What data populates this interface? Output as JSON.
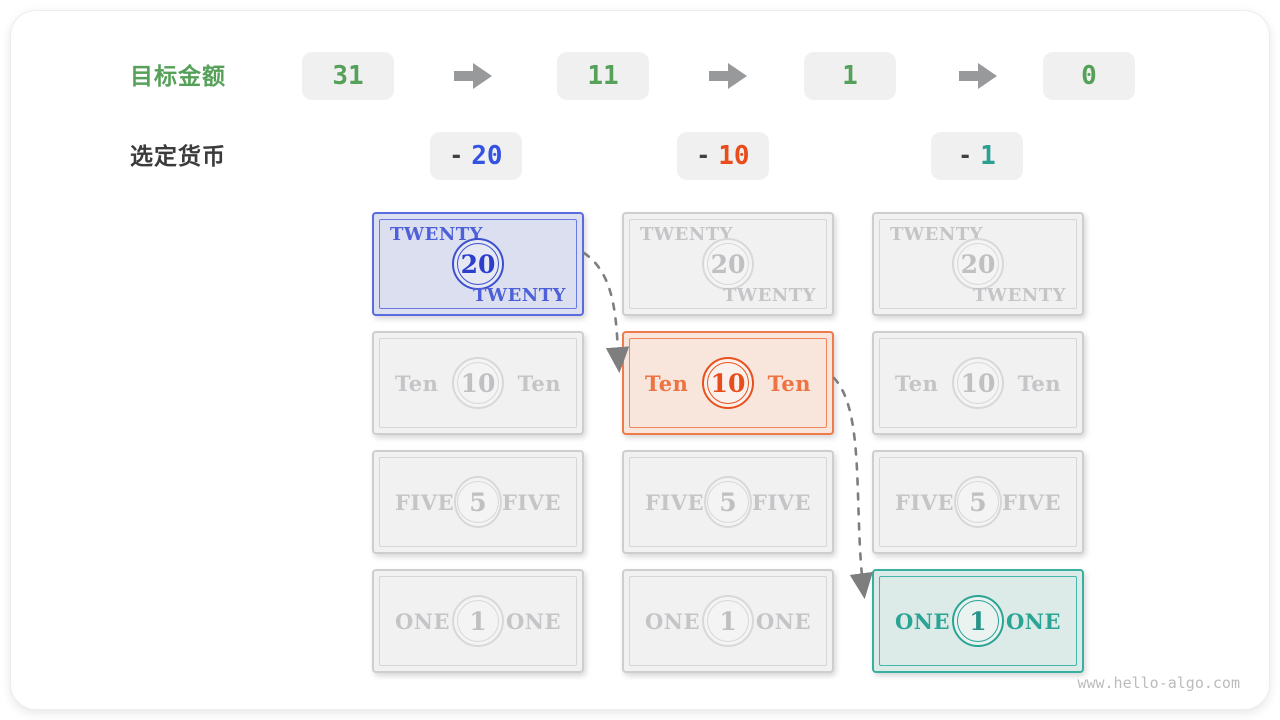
{
  "watermark": "www.hello-algo.com",
  "target_row": {
    "label": "目标金额",
    "values": [
      "31",
      "11",
      "1",
      "0"
    ]
  },
  "selection_row": {
    "label": "选定货币",
    "items": [
      {
        "operator": "-",
        "value": "20",
        "theme": "blue"
      },
      {
        "operator": "-",
        "value": "10",
        "theme": "orange"
      },
      {
        "operator": "-",
        "value": "1",
        "theme": "teal"
      }
    ]
  },
  "banknotes": {
    "rows": [
      {
        "word": "TWENTY",
        "value": "20",
        "layout": "corner"
      },
      {
        "word": "Ten",
        "value": "10",
        "layout": "inline"
      },
      {
        "word": "FIVE",
        "value": "5",
        "layout": "inline"
      },
      {
        "word": "ONE",
        "value": "1",
        "layout": "inline"
      }
    ],
    "columns": 3,
    "highlighted": [
      {
        "col": 0,
        "row": 0,
        "theme": "blue"
      },
      {
        "col": 1,
        "row": 1,
        "theme": "orange"
      },
      {
        "col": 2,
        "row": 3,
        "theme": "teal"
      }
    ]
  },
  "colors": {
    "green": "#55a159",
    "label_dark": "#3b3b3d",
    "box_bg": "#f0f0f1",
    "flow_arrow": "#98999b",
    "trace_arrow": "#7e7e7e",
    "blue": {
      "border": "#5a6bdf",
      "fill": "#dcdff0",
      "word": "#4d60d8",
      "number": "#2c3ecb",
      "pick": "#3453e2"
    },
    "orange": {
      "border": "#ef7b4c",
      "fill": "#f8e5dc",
      "word": "#ed7342",
      "number": "#e84d1b",
      "pick": "#e84d1b"
    },
    "teal": {
      "border": "#37b0a0",
      "fill": "#dcebe7",
      "word": "#2aa495",
      "number": "#27948a",
      "pick": "#2aa091"
    },
    "gray": {
      "border": "#cecece",
      "fill": "#f1f1f2",
      "word": "#c5c5c7",
      "number": "#c0c0c2"
    }
  }
}
